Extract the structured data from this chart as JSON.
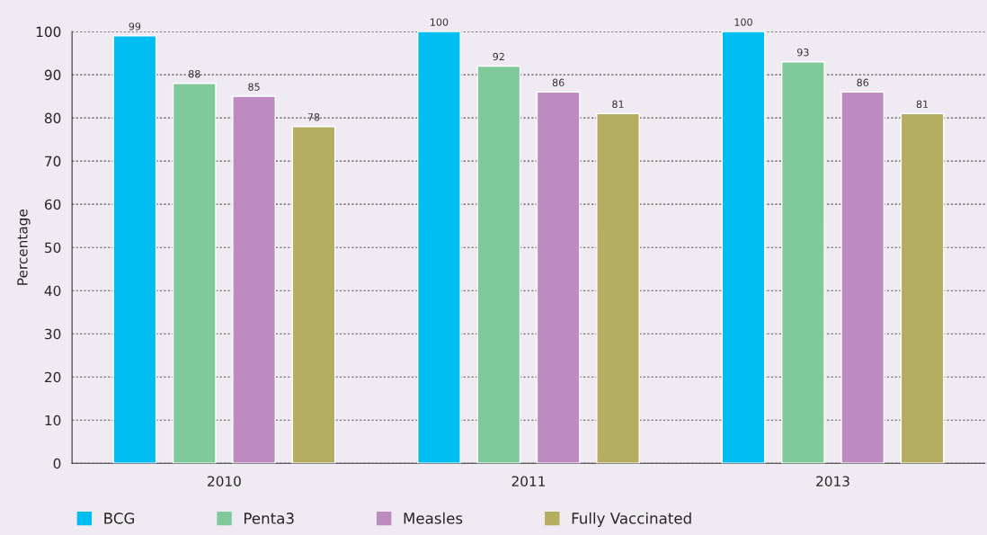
{
  "chart_data": {
    "type": "bar",
    "ylabel": "Percentage",
    "categories": [
      "2010",
      "2011",
      "2013"
    ],
    "series": [
      {
        "name": "BCG",
        "color": "#00bdf2",
        "values": [
          99,
          100,
          100
        ]
      },
      {
        "name": "Penta3",
        "color": "#80c99b",
        "values": [
          88,
          92,
          93
        ]
      },
      {
        "name": "Measles",
        "color": "#bd8bbf",
        "values": [
          85,
          86,
          86
        ]
      },
      {
        "name": "Fully Vaccinated",
        "color": "#b5ad60",
        "values": [
          78,
          81,
          81
        ]
      }
    ],
    "ylim": [
      0,
      100
    ],
    "yticks": [
      0,
      10,
      20,
      30,
      40,
      50,
      60,
      70,
      80,
      90,
      100
    ],
    "grid": "y",
    "legend": "bottom",
    "data_labels": true
  }
}
